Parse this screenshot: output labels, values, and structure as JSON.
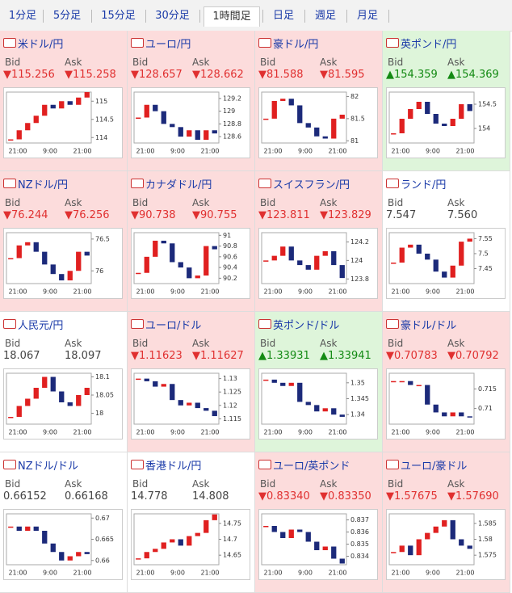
{
  "tabs": [
    "1分足",
    "5分足",
    "15分足",
    "30分足",
    "1時間足",
    "日足",
    "週足",
    "月足"
  ],
  "selected_tab": 4,
  "bid_label": "Bid",
  "ask_label": "Ask",
  "x_labels": [
    "21:00",
    "9:00",
    "21:00"
  ],
  "panels": [
    {
      "title": "米ドル/円",
      "trend": "down",
      "bid": "▼115.256",
      "ask": "▼115.258",
      "ylim": [
        113.85,
        115.25
      ],
      "yticks": [
        114,
        114.5,
        115
      ],
      "closes": [
        113.95,
        114.2,
        114.4,
        114.6,
        114.9,
        114.8,
        115.0,
        114.9,
        115.1,
        115.25
      ]
    },
    {
      "title": "ユーロ/円",
      "trend": "down",
      "bid": "▼128.657",
      "ask": "▼128.662",
      "ylim": [
        128.5,
        129.3
      ],
      "yticks": [
        128.6,
        128.8,
        129,
        129.2
      ],
      "closes": [
        128.9,
        129.1,
        129.0,
        128.8,
        128.75,
        128.6,
        128.7,
        128.55,
        128.7,
        128.65
      ]
    },
    {
      "title": "豪ドル/円",
      "trend": "down",
      "bid": "▼81.588",
      "ask": "▼81.595",
      "ylim": [
        80.95,
        82.1
      ],
      "yticks": [
        81,
        81.5,
        82
      ],
      "closes": [
        81.5,
        81.9,
        81.95,
        81.8,
        81.4,
        81.3,
        81.1,
        81.05,
        81.5,
        81.59
      ]
    },
    {
      "title": "英ポンド/円",
      "trend": "up",
      "bid": "▲154.359",
      "ask": "▲154.369",
      "ylim": [
        153.7,
        154.75
      ],
      "yticks": [
        154,
        154.5
      ],
      "closes": [
        153.9,
        154.2,
        154.4,
        154.55,
        154.3,
        154.1,
        154.05,
        154.2,
        154.5,
        154.36
      ]
    },
    {
      "title": "NZドル/円",
      "trend": "down",
      "bid": "▼76.244",
      "ask": "▼76.256",
      "ylim": [
        75.8,
        76.6
      ],
      "yticks": [
        76,
        76.5
      ],
      "closes": [
        76.2,
        76.4,
        76.45,
        76.3,
        76.1,
        75.95,
        75.85,
        76.0,
        76.3,
        76.24
      ]
    },
    {
      "title": "カナダドル/円",
      "trend": "down",
      "bid": "▼90.738",
      "ask": "▼90.755",
      "ylim": [
        90.1,
        91.05
      ],
      "yticks": [
        90.2,
        90.4,
        90.6,
        90.8,
        91
      ],
      "closes": [
        90.3,
        90.6,
        90.9,
        90.85,
        90.5,
        90.4,
        90.2,
        90.25,
        90.8,
        90.74
      ]
    },
    {
      "title": "スイスフラン/円",
      "trend": "down",
      "bid": "▼123.811",
      "ask": "▼123.829",
      "ylim": [
        123.75,
        124.3
      ],
      "yticks": [
        123.8,
        124,
        124.2
      ],
      "closes": [
        124.0,
        124.05,
        124.15,
        124.0,
        123.95,
        123.9,
        124.05,
        124.1,
        123.95,
        123.81
      ]
    },
    {
      "title": "ランド/円",
      "trend": "flat",
      "bid": "7.547",
      "ask": "7.560",
      "ylim": [
        7.4,
        7.57
      ],
      "yticks": [
        7.45,
        7.5,
        7.55
      ],
      "closes": [
        7.47,
        7.52,
        7.53,
        7.5,
        7.48,
        7.44,
        7.42,
        7.46,
        7.54,
        7.55
      ]
    },
    {
      "title": "人民元/円",
      "trend": "flat",
      "bid": "18.067",
      "ask": "18.097",
      "ylim": [
        17.97,
        18.11
      ],
      "yticks": [
        18,
        18.05,
        18.1
      ],
      "closes": [
        17.99,
        18.02,
        18.04,
        18.07,
        18.1,
        18.06,
        18.03,
        18.02,
        18.05,
        18.07
      ]
    },
    {
      "title": "ユーロ/ドル",
      "trend": "down",
      "bid": "▼1.11623",
      "ask": "▼1.11627",
      "ylim": [
        1.113,
        1.132
      ],
      "yticks": [
        1.115,
        1.12,
        1.125,
        1.13
      ],
      "closes": [
        1.13,
        1.129,
        1.127,
        1.128,
        1.122,
        1.12,
        1.121,
        1.119,
        1.118,
        1.116
      ]
    },
    {
      "title": "英ポンド/ドル",
      "trend": "up",
      "bid": "▲1.33931",
      "ask": "▲1.33941",
      "ylim": [
        1.337,
        1.353
      ],
      "yticks": [
        1.34,
        1.345,
        1.35
      ],
      "closes": [
        1.351,
        1.35,
        1.349,
        1.35,
        1.344,
        1.343,
        1.341,
        1.342,
        1.34,
        1.3393
      ]
    },
    {
      "title": "豪ドル/ドル",
      "trend": "down",
      "bid": "▼0.70783",
      "ask": "▼0.70792",
      "ylim": [
        0.706,
        0.719
      ],
      "yticks": [
        0.71,
        0.715
      ],
      "closes": [
        0.717,
        0.717,
        0.716,
        0.716,
        0.711,
        0.709,
        0.708,
        0.709,
        0.708,
        0.7078
      ]
    },
    {
      "title": "NZドル/ドル",
      "trend": "flat",
      "bid": "0.66152",
      "ask": "0.66168",
      "ylim": [
        0.659,
        0.671
      ],
      "yticks": [
        0.66,
        0.665,
        0.67
      ],
      "closes": [
        0.668,
        0.667,
        0.668,
        0.667,
        0.664,
        0.662,
        0.66,
        0.661,
        0.662,
        0.6615
      ]
    },
    {
      "title": "香港ドル/円",
      "trend": "flat",
      "bid": "14.778",
      "ask": "14.808",
      "ylim": [
        14.62,
        14.78
      ],
      "yticks": [
        14.65,
        14.7,
        14.75
      ],
      "closes": [
        14.64,
        14.66,
        14.67,
        14.69,
        14.7,
        14.68,
        14.71,
        14.72,
        14.76,
        14.778
      ]
    },
    {
      "title": "ユーロ/英ポンド",
      "trend": "down",
      "bid": "▼0.83340",
      "ask": "▼0.83350",
      "ylim": [
        0.8333,
        0.8375
      ],
      "yticks": [
        0.834,
        0.835,
        0.836,
        0.837
      ],
      "closes": [
        0.8365,
        0.836,
        0.8355,
        0.8362,
        0.836,
        0.8352,
        0.8345,
        0.8348,
        0.8338,
        0.8334
      ]
    },
    {
      "title": "ユーロ/豪ドル",
      "trend": "down",
      "bid": "▼1.57675",
      "ask": "▼1.57690",
      "ylim": [
        1.572,
        1.588
      ],
      "yticks": [
        1.575,
        1.58,
        1.585
      ],
      "closes": [
        1.576,
        1.578,
        1.575,
        1.58,
        1.582,
        1.584,
        1.586,
        1.58,
        1.578,
        1.577
      ]
    }
  ]
}
